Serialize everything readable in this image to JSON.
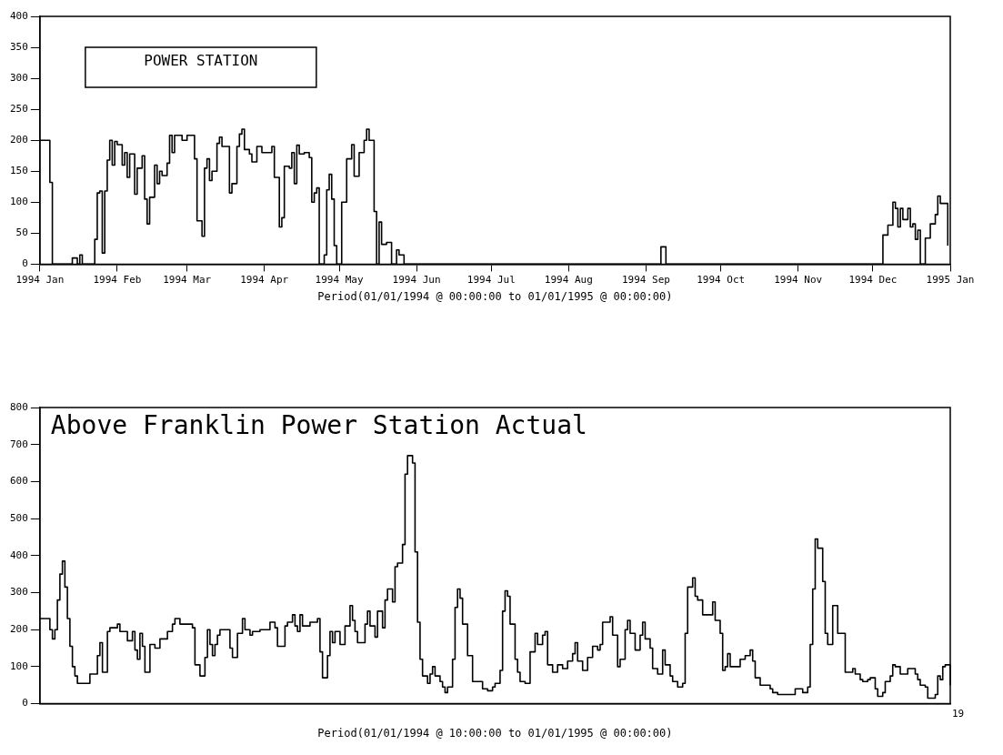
{
  "chart_data": [
    {
      "type": "step",
      "annotations": [
        "POWER STATION"
      ],
      "xlabel": "Period(01/01/1994 @ 00:00:00 to 01/01/1995 @ 00:00:00)",
      "color": "#000000",
      "x": [
        "1994-01-01",
        "1994-01-05",
        "1994-01-06",
        "1994-01-14",
        "1994-01-16",
        "1994-01-17",
        "1994-01-18",
        "1994-01-23",
        "1994-01-24",
        "1994-01-25",
        "1994-01-26",
        "1994-01-27",
        "1994-01-28",
        "1994-01-29",
        "1994-01-30",
        "1994-01-31",
        "1994-02-01",
        "1994-02-03",
        "1994-02-04",
        "1994-02-05",
        "1994-02-06",
        "1994-02-08",
        "1994-02-09",
        "1994-02-11",
        "1994-02-12",
        "1994-02-13",
        "1994-02-14",
        "1994-02-16",
        "1994-02-17",
        "1994-02-18",
        "1994-02-19",
        "1994-02-21",
        "1994-02-22",
        "1994-02-23",
        "1994-02-24",
        "1994-02-27",
        "1994-03-01",
        "1994-03-04",
        "1994-03-05",
        "1994-03-07",
        "1994-03-08",
        "1994-03-09",
        "1994-03-10",
        "1994-03-11",
        "1994-03-13",
        "1994-03-14",
        "1994-03-15",
        "1994-03-18",
        "1994-03-19",
        "1994-03-21",
        "1994-03-22",
        "1994-03-23",
        "1994-03-24",
        "1994-03-26",
        "1994-03-27",
        "1994-03-29",
        "1994-03-31",
        "1994-04-04",
        "1994-04-05",
        "1994-04-07",
        "1994-04-08",
        "1994-04-09",
        "1994-04-11",
        "1994-04-12",
        "1994-04-13",
        "1994-04-14",
        "1994-04-15",
        "1994-04-17",
        "1994-04-19",
        "1994-04-20",
        "1994-04-21",
        "1994-04-22",
        "1994-04-23",
        "1994-04-25",
        "1994-04-26",
        "1994-04-27",
        "1994-04-28",
        "1994-04-29",
        "1994-04-30",
        "1994-05-02",
        "1994-05-04",
        "1994-05-06",
        "1994-05-07",
        "1994-05-09",
        "1994-05-11",
        "1994-05-12",
        "1994-05-13",
        "1994-05-15",
        "1994-05-16",
        "1994-05-17",
        "1994-05-18",
        "1994-05-20",
        "1994-05-22",
        "1994-05-24",
        "1994-05-25",
        "1994-05-27",
        "1994-09-07",
        "1994-09-09",
        "1994-12-05",
        "1994-12-07",
        "1994-12-09",
        "1994-12-10",
        "1994-12-11",
        "1994-12-12",
        "1994-12-13",
        "1994-12-15",
        "1994-12-16",
        "1994-12-17",
        "1994-12-18",
        "1994-12-19",
        "1994-12-20",
        "1994-12-22",
        "1994-12-24",
        "1994-12-26",
        "1994-12-27",
        "1994-12-28",
        "1994-12-31"
      ],
      "values": [
        200,
        132,
        0,
        10,
        0,
        15,
        0,
        40,
        115,
        118,
        18,
        118,
        168,
        200,
        160,
        198,
        193,
        160,
        180,
        140,
        178,
        113,
        155,
        175,
        105,
        65,
        108,
        160,
        130,
        150,
        143,
        163,
        208,
        180,
        208,
        200,
        208,
        170,
        70,
        45,
        155,
        170,
        135,
        150,
        195,
        205,
        190,
        115,
        130,
        190,
        210,
        218,
        185,
        178,
        165,
        190,
        180,
        190,
        140,
        60,
        75,
        158,
        155,
        180,
        130,
        192,
        178,
        180,
        172,
        100,
        115,
        123,
        0,
        15,
        120,
        145,
        105,
        30,
        0,
        100,
        170,
        193,
        142,
        180,
        200,
        218,
        200,
        85,
        0,
        68,
        32,
        35,
        0,
        23,
        15,
        0,
        28,
        0,
        47,
        63,
        100,
        90,
        60,
        90,
        72,
        90,
        60,
        65,
        40,
        55,
        0,
        42,
        65,
        80,
        110,
        98,
        30
      ],
      "xlim": [
        "1994-01-01",
        "1995-01-01"
      ],
      "xticks": [
        {
          "value": "1994-01-01",
          "label": "1994 Jan"
        },
        {
          "value": "1994-02-01",
          "label": "1994 Feb"
        },
        {
          "value": "1994-03-01",
          "label": "1994 Mar"
        },
        {
          "value": "1994-04-01",
          "label": "1994 Apr"
        },
        {
          "value": "1994-05-01",
          "label": "1994 May"
        },
        {
          "value": "1994-06-01",
          "label": "1994 Jun"
        },
        {
          "value": "1994-07-01",
          "label": "1994 Jul"
        },
        {
          "value": "1994-08-01",
          "label": "1994 Aug"
        },
        {
          "value": "1994-09-01",
          "label": "1994 Sep"
        },
        {
          "value": "1994-10-01",
          "label": "1994 Oct"
        },
        {
          "value": "1994-11-01",
          "label": "1994 Nov"
        },
        {
          "value": "1994-12-01",
          "label": "1994 Dec"
        },
        {
          "value": "1995-01-01",
          "label": "1995 Jan"
        }
      ],
      "ylim": [
        0,
        400
      ],
      "yticks": [
        0,
        50,
        100,
        150,
        200,
        250,
        300,
        350,
        400
      ]
    },
    {
      "type": "step",
      "title": "Above Franklin Power Station Actual",
      "xlabel": "Period(01/01/1994 @ 10:00:00 to 01/01/1995 @ 00:00:00)",
      "color": "#000000",
      "annotations": [
        "19"
      ],
      "tick_labels": "y",
      "categories": [
        null,
        null,
        null,
        null,
        null,
        null,
        null,
        null,
        null,
        null,
        null,
        null,
        null,
        null,
        null,
        null,
        null,
        null,
        null,
        null,
        null,
        null,
        null,
        null,
        null,
        null,
        null,
        null,
        null,
        null,
        null,
        null,
        null,
        null,
        null,
        null,
        null,
        null,
        null,
        null,
        null,
        null,
        null,
        null,
        null,
        null,
        null,
        null,
        null,
        null,
        null,
        null,
        null,
        null,
        null,
        null,
        null,
        null,
        null,
        null,
        null,
        null,
        null,
        null,
        null,
        null,
        null,
        null,
        null,
        null,
        null,
        null,
        null,
        null,
        null,
        null,
        null,
        null,
        null,
        null,
        null,
        null,
        null,
        null,
        null,
        null,
        null,
        null,
        null,
        null,
        null,
        null,
        null,
        null,
        null,
        null,
        null,
        null,
        null,
        null,
        null,
        null,
        null,
        null,
        null,
        null,
        null,
        null,
        null,
        null,
        null,
        null,
        null,
        null,
        null,
        null,
        null,
        null,
        null,
        null,
        null,
        null,
        null,
        null,
        null,
        null,
        null,
        null,
        null,
        null,
        null,
        null,
        null,
        null,
        null,
        null,
        null,
        null,
        null,
        null,
        null,
        null,
        null,
        null,
        null,
        null,
        null,
        null,
        null,
        null,
        null,
        null,
        null,
        null,
        null,
        null,
        null,
        null,
        null,
        null,
        null,
        null,
        null,
        null,
        null,
        null,
        null,
        null,
        null,
        null,
        null,
        null,
        null,
        null,
        null,
        null,
        null,
        null,
        null,
        null,
        null,
        null,
        null,
        null,
        null,
        null,
        null,
        null,
        null,
        null,
        null,
        null,
        null,
        null,
        null,
        null,
        null,
        null,
        null,
        null,
        null,
        null,
        null,
        null,
        null,
        null,
        null,
        null,
        null,
        null,
        null,
        null,
        null,
        null,
        null,
        null,
        null,
        null,
        null,
        null,
        null,
        null,
        null,
        null,
        null,
        null,
        null,
        null,
        null,
        null,
        null,
        null,
        null,
        null,
        null,
        null,
        null,
        null,
        null,
        null,
        null,
        null,
        null,
        null,
        null,
        null,
        null,
        null,
        null,
        null,
        null,
        null,
        null,
        null,
        null,
        null,
        null,
        null,
        null,
        null,
        null,
        null,
        null,
        null,
        null,
        null,
        null,
        null,
        null,
        null,
        null,
        null,
        null,
        null,
        null,
        null,
        null,
        null,
        null,
        null,
        null,
        null,
        null,
        null,
        null,
        null,
        null,
        null,
        null,
        null,
        null,
        null,
        null,
        null,
        null,
        null,
        null,
        null,
        null,
        null,
        null,
        null,
        null,
        null,
        null,
        null,
        null,
        null,
        null,
        null,
        null,
        null,
        null,
        null,
        null,
        null,
        null,
        null,
        null,
        null,
        null,
        null,
        null,
        null,
        null,
        null,
        null,
        null,
        null,
        null,
        null,
        null,
        null,
        null,
        null,
        null,
        null,
        null,
        null,
        null,
        null,
        null,
        null,
        null,
        null,
        null,
        null,
        null,
        null,
        null,
        null,
        null,
        null,
        null,
        null,
        null,
        null,
        null,
        null,
        null,
        null,
        null,
        null,
        null,
        null
      ],
      "values": [
        230,
        230,
        230,
        230,
        200,
        175,
        200,
        280,
        350,
        385,
        315,
        230,
        155,
        100,
        75,
        55,
        55,
        55,
        55,
        55,
        80,
        80,
        80,
        130,
        165,
        85,
        85,
        195,
        205,
        205,
        205,
        215,
        195,
        195,
        195,
        170,
        170,
        195,
        145,
        120,
        190,
        155,
        85,
        85,
        160,
        160,
        150,
        150,
        175,
        175,
        175,
        195,
        195,
        215,
        230,
        230,
        215,
        215,
        215,
        215,
        215,
        205,
        105,
        105,
        75,
        75,
        125,
        200,
        160,
        130,
        160,
        185,
        200,
        200,
        200,
        200,
        150,
        125,
        125,
        190,
        190,
        230,
        200,
        200,
        185,
        195,
        195,
        195,
        200,
        200,
        200,
        200,
        220,
        220,
        205,
        155,
        155,
        155,
        210,
        220,
        220,
        240,
        210,
        195,
        240,
        210,
        210,
        210,
        220,
        220,
        220,
        230,
        140,
        70,
        70,
        130,
        195,
        165,
        195,
        195,
        160,
        160,
        210,
        210,
        265,
        225,
        195,
        165,
        165,
        165,
        215,
        250,
        210,
        210,
        180,
        250,
        250,
        205,
        280,
        310,
        310,
        275,
        370,
        380,
        380,
        430,
        620,
        670,
        670,
        650,
        410,
        220,
        120,
        75,
        75,
        55,
        80,
        100,
        75,
        75,
        60,
        45,
        30,
        45,
        45,
        120,
        260,
        310,
        285,
        215,
        215,
        130,
        130,
        60,
        60,
        60,
        60,
        40,
        40,
        35,
        35,
        45,
        55,
        55,
        90,
        250,
        305,
        290,
        215,
        215,
        120,
        85,
        60,
        60,
        55,
        55,
        140,
        140,
        190,
        160,
        160,
        185,
        195,
        105,
        105,
        85,
        85,
        105,
        105,
        95,
        95,
        115,
        115,
        135,
        165,
        115,
        115,
        90,
        90,
        125,
        125,
        155,
        155,
        145,
        160,
        220,
        220,
        220,
        235,
        185,
        185,
        100,
        120,
        120,
        200,
        225,
        190,
        190,
        145,
        145,
        185,
        220,
        175,
        175,
        150,
        95,
        95,
        80,
        80,
        145,
        105,
        105,
        75,
        60,
        60,
        45,
        45,
        55,
        190,
        315,
        315,
        340,
        290,
        280,
        280,
        240,
        240,
        240,
        240,
        275,
        225,
        225,
        190,
        90,
        100,
        135,
        100,
        100,
        100,
        100,
        120,
        120,
        130,
        130,
        145,
        115,
        70,
        70,
        50,
        50,
        50,
        50,
        40,
        30,
        30,
        25,
        25,
        25,
        25,
        25,
        25,
        25,
        40,
        40,
        40,
        30,
        30,
        45,
        160,
        310,
        445,
        420,
        420,
        330,
        190,
        160,
        160,
        265,
        265,
        190,
        190,
        190,
        85,
        85,
        85,
        95,
        80,
        80,
        65,
        60,
        60,
        65,
        70,
        70,
        40,
        20,
        20,
        30,
        60,
        60,
        75,
        105,
        100,
        100,
        80,
        80,
        80,
        95,
        95,
        95,
        80,
        65,
        50,
        50,
        45,
        15,
        15,
        15,
        25,
        75,
        65,
        100,
        105,
        105,
        50
      ],
      "ylim": [
        0,
        800
      ],
      "yticks": [
        0,
        100,
        200,
        300,
        400,
        500,
        600,
        700,
        800
      ]
    }
  ]
}
